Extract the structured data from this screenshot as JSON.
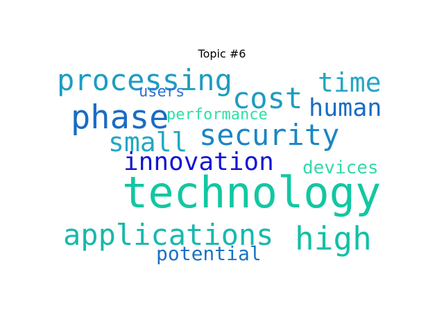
{
  "title": "Topic #6",
  "words": [
    {
      "key": "processing",
      "text": "processing",
      "color": "#1e9cc0"
    },
    {
      "key": "users",
      "text": "users",
      "color": "#2f6fd6"
    },
    {
      "key": "cost",
      "text": "cost",
      "color": "#1e9cc0"
    },
    {
      "key": "time",
      "text": "time",
      "color": "#22a7c3"
    },
    {
      "key": "human",
      "text": "human",
      "color": "#1a6cc4"
    },
    {
      "key": "phase",
      "text": "phase",
      "color": "#1a6cc4"
    },
    {
      "key": "performance",
      "text": "performance",
      "color": "#2ee0a6"
    },
    {
      "key": "security",
      "text": "security",
      "color": "#1a86c4"
    },
    {
      "key": "small",
      "text": "small",
      "color": "#22a7c3"
    },
    {
      "key": "innovation",
      "text": "innovation",
      "color": "#1414d6"
    },
    {
      "key": "devices",
      "text": "devices",
      "color": "#33d9aa"
    },
    {
      "key": "technology",
      "text": "technology",
      "color": "#12c7a2"
    },
    {
      "key": "applications",
      "text": "applications",
      "color": "#18b8ad"
    },
    {
      "key": "high",
      "text": "high",
      "color": "#14bfa6"
    },
    {
      "key": "potential",
      "text": "potential",
      "color": "#1a72c4"
    }
  ]
}
